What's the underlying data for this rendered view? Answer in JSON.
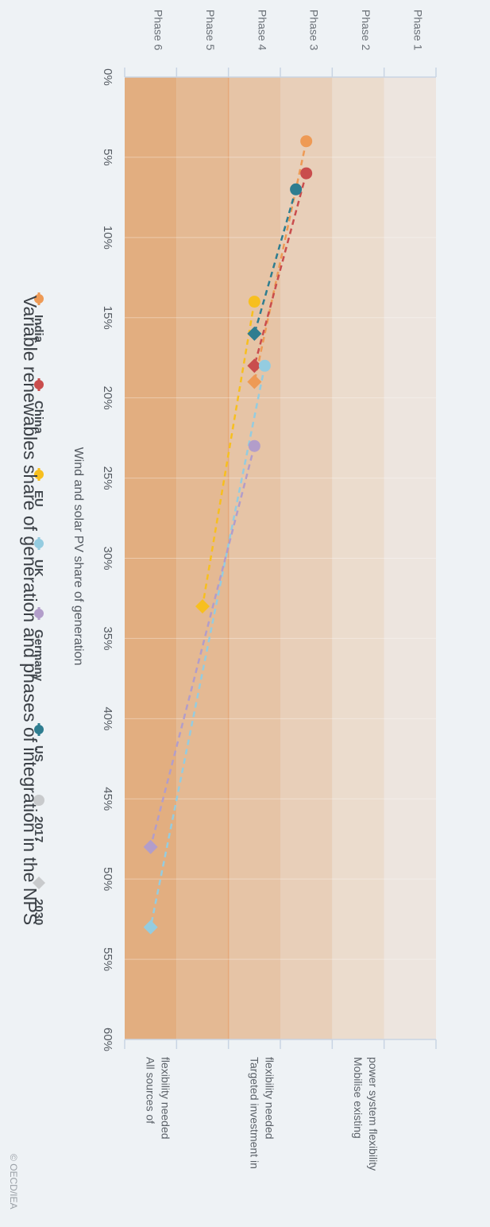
{
  "chart_data": {
    "type": "line",
    "title": "Variable renewables share of generation and phases of integration in the NPS",
    "xlabel": "Wind and solar PV share of generation",
    "x_ticks": [
      "0%",
      "5%",
      "10%",
      "15%",
      "20%",
      "25%",
      "30%",
      "35%",
      "40%",
      "45%",
      "50%",
      "55%",
      "60%"
    ],
    "xlim": [
      0,
      60
    ],
    "phases": [
      "Phase 1",
      "Phase 2",
      "Phase 3",
      "Phase 4",
      "Phase 5",
      "Phase 6"
    ],
    "phase_colors": [
      "#ede5df",
      "#ebdccd",
      "#e8cfb9",
      "#e6c4a6",
      "#e4b993",
      "#e2ae80"
    ],
    "phase_notes": [
      {
        "lines": [
          "Mobilise existing",
          "power system flexibility"
        ]
      },
      {
        "lines": [
          "Targeted investment in",
          "flexibility needed"
        ]
      },
      {
        "lines": [
          "All sources of",
          "flexibility needed"
        ]
      }
    ],
    "series": [
      {
        "name": "India",
        "color": "#ee9a55",
        "points": [
          {
            "year": "2017",
            "x": 4,
            "phase": 2.5
          },
          {
            "year": "2030",
            "x": 19,
            "phase": 3.5
          }
        ]
      },
      {
        "name": "China",
        "color": "#c94d4d",
        "points": [
          {
            "year": "2017",
            "x": 6,
            "phase": 2.5
          },
          {
            "year": "2030",
            "x": 18,
            "phase": 3.5
          }
        ]
      },
      {
        "name": "EU",
        "color": "#f7bf1f",
        "points": [
          {
            "year": "2017",
            "x": 14,
            "phase": 3.5
          },
          {
            "year": "2030",
            "x": 33,
            "phase": 4.5
          }
        ]
      },
      {
        "name": "UK",
        "color": "#94cce0",
        "points": [
          {
            "year": "2017",
            "x": 18,
            "phase": 3.3
          },
          {
            "year": "2030",
            "x": 53,
            "phase": 5.5
          }
        ]
      },
      {
        "name": "Germany",
        "color": "#b29dca",
        "points": [
          {
            "year": "2017",
            "x": 23,
            "phase": 3.5
          },
          {
            "year": "2030",
            "x": 48,
            "phase": 5.5
          }
        ]
      },
      {
        "name": "US",
        "color": "#2e7d90",
        "points": [
          {
            "year": "2017",
            "x": 7,
            "phase": 2.7
          },
          {
            "year": "2030",
            "x": 16,
            "phase": 3.5
          }
        ]
      }
    ],
    "legend": {
      "placement": "bottom",
      "markers": [
        {
          "name": "2017",
          "shape": "circle",
          "color": "#c8cacc"
        },
        {
          "name": "2030",
          "shape": "diamond",
          "color": "#c8cacc"
        }
      ]
    },
    "copyright": "© OECD/IEA"
  }
}
